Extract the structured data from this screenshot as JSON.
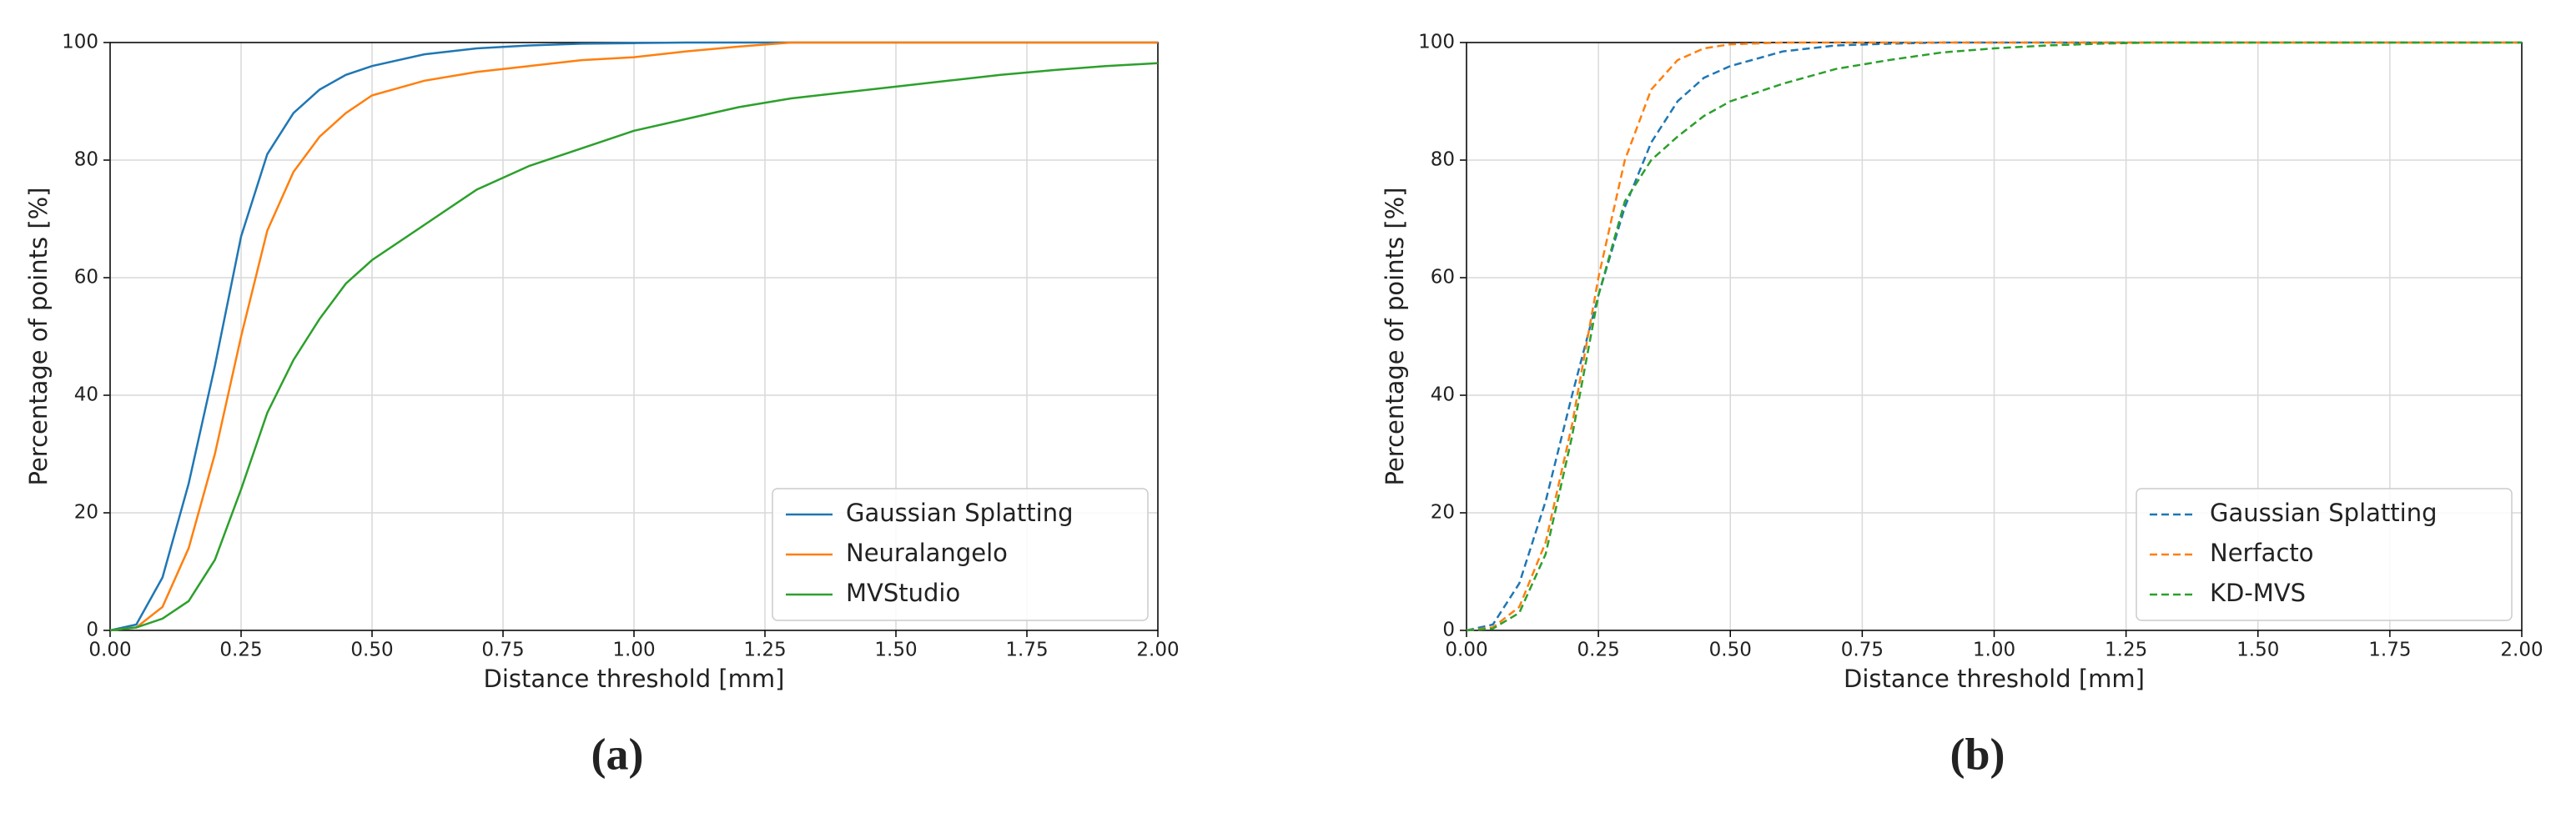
{
  "chart_data": [
    {
      "type": "line",
      "caption": "(a)",
      "xlabel": "Distance threshold [mm]",
      "ylabel": "Percentage of points [%]",
      "x": [
        0,
        0.05,
        0.1,
        0.15,
        0.2,
        0.25,
        0.3,
        0.35,
        0.4,
        0.45,
        0.5,
        0.6,
        0.7,
        0.8,
        0.9,
        1.0,
        1.1,
        1.2,
        1.3,
        1.4,
        1.5,
        1.6,
        1.7,
        1.8,
        1.9,
        2.0
      ],
      "series": [
        {
          "name": "Gaussian Splatting",
          "color": "#1f77b4",
          "values": [
            0,
            1,
            9,
            25,
            45,
            67,
            81,
            88,
            92,
            94.5,
            96,
            98,
            99,
            99.5,
            99.8,
            99.9,
            100,
            100,
            100,
            100,
            100,
            100,
            100,
            100,
            100,
            100
          ]
        },
        {
          "name": "Neuralangelo",
          "color": "#ff7f0e",
          "values": [
            0,
            0.5,
            4,
            14,
            30,
            50,
            68,
            78,
            84,
            88,
            91,
            93.5,
            95,
            96,
            97,
            97.5,
            98.5,
            99.3,
            100,
            100,
            100,
            100,
            100,
            100,
            100,
            100
          ]
        },
        {
          "name": "MVStudio",
          "color": "#2ca02c",
          "values": [
            0,
            0.5,
            2,
            5,
            12,
            24,
            37,
            46,
            53,
            59,
            63,
            69,
            75,
            79,
            82,
            85,
            87,
            89,
            90.5,
            91.5,
            92.5,
            93.5,
            94.5,
            95.3,
            96,
            96.5
          ]
        }
      ],
      "line_style": "solid",
      "xlim": [
        0,
        2
      ],
      "ylim": [
        0,
        100
      ],
      "xticks": [
        {
          "value": 0,
          "label": "0.00"
        },
        0.25,
        {
          "value": 0.5,
          "label": "0.50"
        },
        0.75,
        {
          "value": 1,
          "label": "1.00"
        },
        1.25,
        {
          "value": 1.5,
          "label": "1.50"
        },
        1.75,
        {
          "value": 2,
          "label": "2.00"
        }
      ],
      "yticks": [
        0,
        20,
        40,
        60,
        80,
        100
      ],
      "grid": true,
      "legend": "lower right"
    },
    {
      "type": "line",
      "caption": "(b)",
      "xlabel": "Distance threshold [mm]",
      "ylabel": "Percentage of points [%]",
      "x": [
        0,
        0.05,
        0.1,
        0.15,
        0.2,
        0.25,
        0.3,
        0.35,
        0.4,
        0.45,
        0.5,
        0.6,
        0.7,
        0.8,
        0.9,
        1.0,
        1.1,
        1.2,
        1.3,
        1.4,
        1.5,
        1.6,
        1.7,
        1.8,
        1.9,
        2.0
      ],
      "series": [
        {
          "name": "Gaussian Splatting",
          "color": "#1f77b4",
          "values": [
            0,
            1,
            8,
            22,
            40,
            57,
            72,
            83,
            90,
            94,
            96,
            98.5,
            99.5,
            99.8,
            100,
            100,
            100,
            100,
            100,
            100,
            100,
            100,
            100,
            100,
            100,
            100
          ]
        },
        {
          "name": "Nerfacto",
          "color": "#ff7f0e",
          "values": [
            0,
            0.5,
            4,
            15,
            35,
            60,
            80,
            92,
            97,
            99,
            99.7,
            100,
            100,
            100,
            100,
            100,
            100,
            100,
            100,
            100,
            100,
            100,
            100,
            100,
            100,
            100
          ]
        },
        {
          "name": "KD-MVS",
          "color": "#2ca02c",
          "values": [
            0,
            0.3,
            3,
            13,
            33,
            57,
            73,
            80,
            84,
            87.5,
            90,
            93,
            95.5,
            97,
            98.3,
            99,
            99.5,
            99.8,
            100,
            100,
            100,
            100,
            100,
            100,
            100,
            100
          ]
        }
      ],
      "line_style": "dashed",
      "xlim": [
        0,
        2
      ],
      "ylim": [
        0,
        100
      ],
      "xticks": [
        {
          "value": 0,
          "label": "0.00"
        },
        0.25,
        {
          "value": 0.5,
          "label": "0.50"
        },
        0.75,
        {
          "value": 1,
          "label": "1.00"
        },
        1.25,
        {
          "value": 1.5,
          "label": "1.50"
        },
        1.75,
        {
          "value": 2,
          "label": "2.00"
        }
      ],
      "yticks": [
        0,
        20,
        40,
        60,
        80,
        100
      ],
      "grid": true,
      "legend": "lower right"
    }
  ]
}
